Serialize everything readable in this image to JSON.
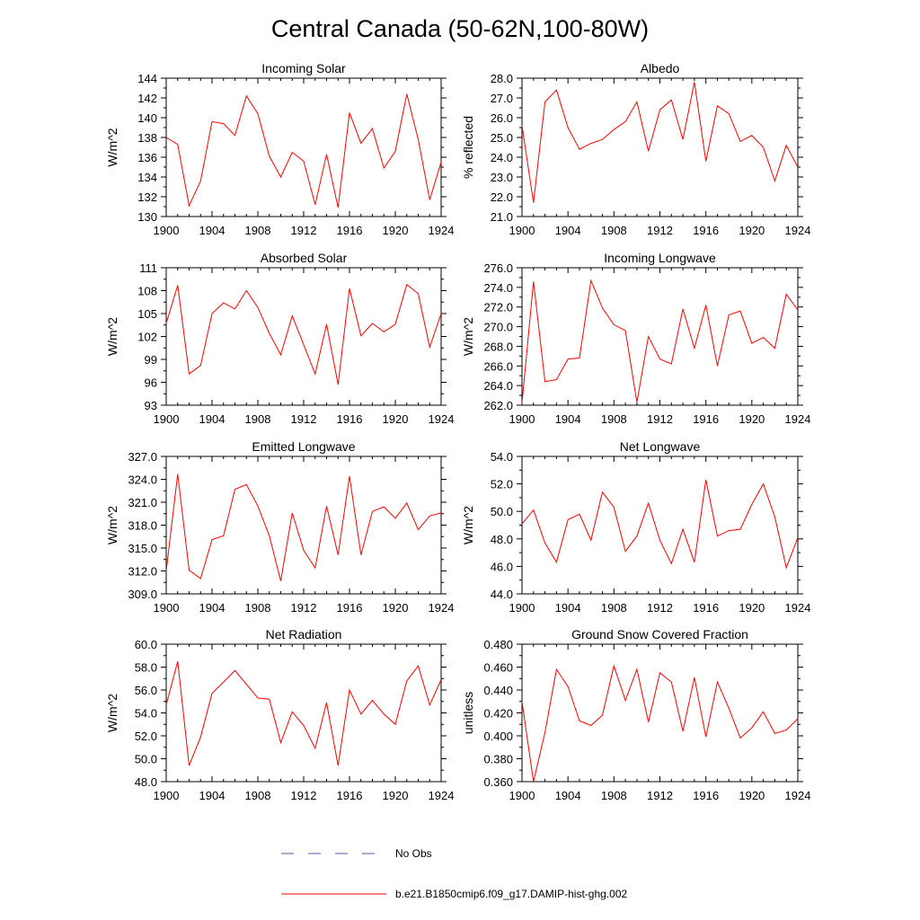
{
  "title": "Central Canada (50-62N,100-80W)",
  "colors": {
    "model": "#ff0000",
    "obs": "#4a5fa0",
    "axis": "#000000"
  },
  "legend": [
    {
      "label": "No Obs",
      "style": "dashed",
      "color": "#4a5fa0"
    },
    {
      "label": "b.e21.B1850cmip6.f09_g17.DAMIP-hist-ghg.002",
      "style": "solid",
      "color": "#ff0000"
    }
  ],
  "chart_data": [
    {
      "type": "line",
      "title": "Incoming Solar",
      "ylabel": "W/m^2",
      "xlim": [
        1900,
        1924
      ],
      "ylim": [
        130,
        144
      ],
      "xticks": [
        "1900",
        "1904",
        "1908",
        "1912",
        "1916",
        "1920",
        "1924"
      ],
      "yticks": [
        "130",
        "132",
        "134",
        "136",
        "138",
        "140",
        "142",
        "144"
      ],
      "x": [
        1900,
        1901,
        1902,
        1903,
        1904,
        1905,
        1906,
        1907,
        1908,
        1909,
        1910,
        1911,
        1912,
        1913,
        1914,
        1915,
        1916,
        1917,
        1918,
        1919,
        1920,
        1921,
        1922,
        1923,
        1924
      ],
      "series": [
        {
          "values": [
            138.0,
            137.3,
            131.1,
            133.6,
            139.6,
            139.4,
            138.2,
            142.2,
            140.4,
            136.1,
            134.0,
            136.5,
            135.6,
            131.2,
            136.3,
            130.9,
            140.5,
            137.4,
            138.9,
            134.9,
            136.6,
            142.4,
            137.8,
            131.7,
            135.5
          ]
        }
      ]
    },
    {
      "type": "line",
      "title": "Albedo",
      "ylabel": "% reflected",
      "xlim": [
        1900,
        1924
      ],
      "ylim": [
        21.0,
        28.0
      ],
      "xticks": [
        "1900",
        "1904",
        "1908",
        "1912",
        "1916",
        "1920",
        "1924"
      ],
      "yticks": [
        "21.0",
        "22.0",
        "23.0",
        "24.0",
        "25.0",
        "26.0",
        "27.0",
        "28.0"
      ],
      "x": [
        1900,
        1901,
        1902,
        1903,
        1904,
        1905,
        1906,
        1907,
        1908,
        1909,
        1910,
        1911,
        1912,
        1913,
        1914,
        1915,
        1916,
        1917,
        1918,
        1919,
        1920,
        1921,
        1922,
        1923,
        1924
      ],
      "series": [
        {
          "values": [
            25.6,
            21.7,
            26.8,
            27.4,
            25.5,
            24.4,
            24.7,
            24.9,
            25.4,
            25.8,
            26.8,
            24.3,
            26.4,
            26.9,
            24.9,
            27.8,
            23.8,
            26.6,
            26.2,
            24.8,
            25.1,
            24.5,
            22.8,
            24.6,
            23.5
          ]
        }
      ]
    },
    {
      "type": "line",
      "title": "Absorbed Solar",
      "ylabel": "W/m^2",
      "xlim": [
        1900,
        1924
      ],
      "ylim": [
        93,
        111
      ],
      "xticks": [
        "1900",
        "1904",
        "1908",
        "1912",
        "1916",
        "1920",
        "1924"
      ],
      "yticks": [
        "93",
        "96",
        "99",
        "102",
        "105",
        "108",
        "111"
      ],
      "x": [
        1900,
        1901,
        1902,
        1903,
        1904,
        1905,
        1906,
        1907,
        1908,
        1909,
        1910,
        1911,
        1912,
        1913,
        1914,
        1915,
        1916,
        1917,
        1918,
        1919,
        1920,
        1921,
        1922,
        1923,
        1924
      ],
      "series": [
        {
          "values": [
            103.7,
            108.7,
            97.1,
            98.2,
            105.0,
            106.4,
            105.6,
            108.0,
            105.8,
            102.4,
            99.6,
            104.7,
            100.9,
            97.1,
            103.6,
            95.7,
            108.3,
            102.1,
            103.7,
            102.6,
            103.6,
            108.8,
            107.6,
            100.6,
            105.0
          ]
        }
      ]
    },
    {
      "type": "line",
      "title": "Incoming Longwave",
      "ylabel": "W/m^2",
      "xlim": [
        1900,
        1924
      ],
      "ylim": [
        262.0,
        276.0
      ],
      "xticks": [
        "1900",
        "1904",
        "1908",
        "1912",
        "1916",
        "1920",
        "1924"
      ],
      "yticks": [
        "262.0",
        "264.0",
        "266.0",
        "268.0",
        "270.0",
        "272.0",
        "274.0",
        "276.0"
      ],
      "x": [
        1900,
        1901,
        1902,
        1903,
        1904,
        1905,
        1906,
        1907,
        1908,
        1909,
        1910,
        1911,
        1912,
        1913,
        1914,
        1915,
        1916,
        1917,
        1918,
        1919,
        1920,
        1921,
        1922,
        1923,
        1924
      ],
      "series": [
        {
          "values": [
            262.2,
            274.6,
            264.4,
            264.6,
            266.7,
            266.8,
            274.7,
            271.9,
            270.2,
            269.6,
            262.3,
            269.0,
            266.7,
            266.2,
            271.8,
            267.8,
            272.2,
            266.0,
            271.2,
            271.6,
            268.3,
            268.9,
            267.8,
            273.3,
            271.7
          ]
        }
      ]
    },
    {
      "type": "line",
      "title": "Emitted Longwave",
      "ylabel": "W/m^2",
      "xlim": [
        1900,
        1924
      ],
      "ylim": [
        309.0,
        327.0
      ],
      "xticks": [
        "1900",
        "1904",
        "1908",
        "1912",
        "1916",
        "1920",
        "1924"
      ],
      "yticks": [
        "309.0",
        "312.0",
        "315.0",
        "318.0",
        "321.0",
        "324.0",
        "327.0"
      ],
      "x": [
        1900,
        1901,
        1902,
        1903,
        1904,
        1905,
        1906,
        1907,
        1908,
        1909,
        1910,
        1911,
        1912,
        1913,
        1914,
        1915,
        1916,
        1917,
        1918,
        1919,
        1920,
        1921,
        1922,
        1923,
        1924
      ],
      "series": [
        {
          "values": [
            312.0,
            324.7,
            312.1,
            311.0,
            316.1,
            316.6,
            322.7,
            323.3,
            320.5,
            316.6,
            310.7,
            319.6,
            314.7,
            312.4,
            320.5,
            314.1,
            324.4,
            314.1,
            319.8,
            320.4,
            318.9,
            320.9,
            317.4,
            319.2,
            319.6
          ]
        }
      ]
    },
    {
      "type": "line",
      "title": "Net Longwave",
      "ylabel": "W/m^2",
      "xlim": [
        1900,
        1924
      ],
      "ylim": [
        44.0,
        54.0
      ],
      "xticks": [
        "1900",
        "1904",
        "1908",
        "1912",
        "1916",
        "1920",
        "1924"
      ],
      "yticks": [
        "44.0",
        "46.0",
        "48.0",
        "50.0",
        "52.0",
        "54.0"
      ],
      "x": [
        1900,
        1901,
        1902,
        1903,
        1904,
        1905,
        1906,
        1907,
        1908,
        1909,
        1910,
        1911,
        1912,
        1913,
        1914,
        1915,
        1916,
        1917,
        1918,
        1919,
        1920,
        1921,
        1922,
        1923,
        1924
      ],
      "series": [
        {
          "values": [
            49.1,
            50.1,
            47.7,
            46.3,
            49.4,
            49.8,
            47.9,
            51.4,
            50.3,
            47.1,
            48.2,
            50.6,
            47.9,
            46.2,
            48.7,
            46.3,
            52.3,
            48.2,
            48.6,
            48.7,
            50.5,
            52.0,
            49.6,
            45.9,
            48.1
          ]
        }
      ]
    },
    {
      "type": "line",
      "title": "Net Radiation",
      "ylabel": "W/m^2",
      "xlim": [
        1900,
        1924
      ],
      "ylim": [
        48.0,
        60.0
      ],
      "xticks": [
        "1900",
        "1904",
        "1908",
        "1912",
        "1916",
        "1920",
        "1924"
      ],
      "yticks": [
        "48.0",
        "50.0",
        "52.0",
        "54.0",
        "56.0",
        "58.0",
        "60.0"
      ],
      "x": [
        1900,
        1901,
        1902,
        1903,
        1904,
        1905,
        1906,
        1907,
        1908,
        1909,
        1910,
        1911,
        1912,
        1913,
        1914,
        1915,
        1916,
        1917,
        1918,
        1919,
        1920,
        1921,
        1922,
        1923,
        1924
      ],
      "series": [
        {
          "values": [
            54.7,
            58.5,
            49.4,
            51.9,
            55.7,
            56.7,
            57.7,
            56.5,
            55.3,
            55.2,
            51.4,
            54.1,
            52.9,
            50.9,
            54.9,
            49.4,
            56.0,
            53.9,
            55.1,
            53.9,
            53.0,
            56.8,
            58.1,
            54.7,
            56.9
          ]
        }
      ]
    },
    {
      "type": "line",
      "title": "Ground Snow Covered Fraction",
      "ylabel": "unitless",
      "xlim": [
        1900,
        1924
      ],
      "ylim": [
        0.36,
        0.48
      ],
      "xticks": [
        "1900",
        "1904",
        "1908",
        "1912",
        "1916",
        "1920",
        "1924"
      ],
      "yticks": [
        "0.360",
        "0.380",
        "0.400",
        "0.420",
        "0.440",
        "0.460",
        "0.480"
      ],
      "x": [
        1900,
        1901,
        1902,
        1903,
        1904,
        1905,
        1906,
        1907,
        1908,
        1909,
        1910,
        1911,
        1912,
        1913,
        1914,
        1915,
        1916,
        1917,
        1918,
        1919,
        1920,
        1921,
        1922,
        1923,
        1924
      ],
      "series": [
        {
          "values": [
            0.43,
            0.36,
            0.403,
            0.458,
            0.443,
            0.413,
            0.409,
            0.418,
            0.461,
            0.431,
            0.458,
            0.412,
            0.455,
            0.447,
            0.404,
            0.451,
            0.399,
            0.447,
            0.424,
            0.398,
            0.407,
            0.421,
            0.402,
            0.405,
            0.415
          ]
        }
      ]
    }
  ]
}
